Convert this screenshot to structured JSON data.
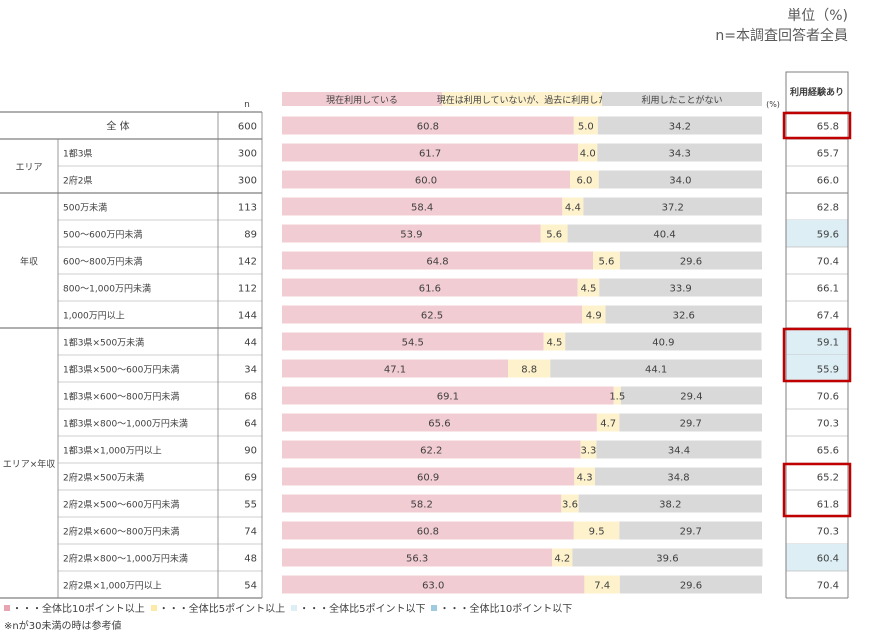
{
  "unit": {
    "line1": "単位（%)",
    "line2": "n=本調査回答者全員"
  },
  "chart_data": {
    "type": "bar",
    "stacked": true,
    "orientation": "horizontal",
    "n_header": "n",
    "pct_label": "(%)",
    "extra_column_header": "利用経験あり",
    "series": [
      {
        "name": "現在利用している",
        "color": "#f2ccd3"
      },
      {
        "name": "現在は利用していないが、過去に利用した",
        "color": "#fdf2cc"
      },
      {
        "name": "利用したことがない",
        "color": "#d9d9d9"
      }
    ],
    "total": {
      "label": "全 体",
      "n": "600",
      "values": [
        60.8,
        5.0,
        34.2
      ],
      "labels": [
        "60.8",
        "5.0",
        "34.2"
      ],
      "experience": "65.8",
      "highlight": "",
      "boxed": true
    },
    "groups": [
      {
        "label": "エリア",
        "rows": [
          {
            "label": "1都3県",
            "n": "300",
            "values": [
              61.7,
              4.0,
              34.3
            ],
            "labels": [
              "61.7",
              "4.0",
              "34.3"
            ],
            "experience": "65.7",
            "highlight": "",
            "boxed": false
          },
          {
            "label": "2府2県",
            "n": "300",
            "values": [
              60.0,
              6.0,
              34.0
            ],
            "labels": [
              "60.0",
              "6.0",
              "34.0"
            ],
            "experience": "66.0",
            "highlight": "",
            "boxed": false
          }
        ]
      },
      {
        "label": "年収",
        "rows": [
          {
            "label": "500万未満",
            "n": "113",
            "values": [
              58.4,
              4.4,
              37.2
            ],
            "labels": [
              "58.4",
              "4.4",
              "37.2"
            ],
            "experience": "62.8",
            "highlight": "",
            "boxed": false
          },
          {
            "label": "500～600万円未満",
            "n": "89",
            "values": [
              53.9,
              5.6,
              40.4
            ],
            "labels": [
              "53.9",
              "5.6",
              "40.4"
            ],
            "experience": "59.6",
            "highlight": "blue",
            "boxed": false
          },
          {
            "label": "600～800万円未満",
            "n": "142",
            "values": [
              64.8,
              5.6,
              29.6
            ],
            "labels": [
              "64.8",
              "5.6",
              "29.6"
            ],
            "experience": "70.4",
            "highlight": "",
            "boxed": false
          },
          {
            "label": "800～1,000万円未満",
            "n": "112",
            "values": [
              61.6,
              4.5,
              33.9
            ],
            "labels": [
              "61.6",
              "4.5",
              "33.9"
            ],
            "experience": "66.1",
            "highlight": "",
            "boxed": false
          },
          {
            "label": "1,000万円以上",
            "n": "144",
            "values": [
              62.5,
              4.9,
              32.6
            ],
            "labels": [
              "62.5",
              "4.9",
              "32.6"
            ],
            "experience": "67.4",
            "highlight": "",
            "boxed": false
          }
        ]
      },
      {
        "label": "エリア×年収",
        "rows": [
          {
            "label": "1都3県×500万未満",
            "n": "44",
            "values": [
              54.5,
              4.5,
              40.9
            ],
            "labels": [
              "54.5",
              "4.5",
              "40.9"
            ],
            "experience": "59.1",
            "highlight": "blue",
            "boxed": true,
            "box_group": "A"
          },
          {
            "label": "1都3県×500～600万円未満",
            "n": "34",
            "values": [
              47.1,
              8.8,
              44.1
            ],
            "labels": [
              "47.1",
              "8.8",
              "44.1"
            ],
            "experience": "55.9",
            "highlight": "blue",
            "boxed": true,
            "box_group": "A"
          },
          {
            "label": "1都3県×600～800万円未満",
            "n": "68",
            "values": [
              69.1,
              1.5,
              29.4
            ],
            "labels": [
              "69.1",
              "1.5",
              "29.4"
            ],
            "experience": "70.6",
            "highlight": "",
            "boxed": false
          },
          {
            "label": "1都3県×800～1,000万円未満",
            "n": "64",
            "values": [
              65.6,
              4.7,
              29.7
            ],
            "labels": [
              "65.6",
              "4.7",
              "29.7"
            ],
            "experience": "70.3",
            "highlight": "",
            "boxed": false
          },
          {
            "label": "1都3県×1,000万円以上",
            "n": "90",
            "values": [
              62.2,
              3.3,
              34.4
            ],
            "labels": [
              "62.2",
              "3.3",
              "34.4"
            ],
            "experience": "65.6",
            "highlight": "",
            "boxed": false
          },
          {
            "label": "2府2県×500万未満",
            "n": "69",
            "values": [
              60.9,
              4.3,
              34.8
            ],
            "labels": [
              "60.9",
              "4.3",
              "34.8"
            ],
            "experience": "65.2",
            "highlight": "",
            "boxed": true,
            "box_group": "B"
          },
          {
            "label": "2府2県×500～600万円未満",
            "n": "55",
            "values": [
              58.2,
              3.6,
              38.2
            ],
            "labels": [
              "58.2",
              "3.6",
              "38.2"
            ],
            "experience": "61.8",
            "highlight": "",
            "boxed": true,
            "box_group": "B"
          },
          {
            "label": "2府2県×600～800万円未満",
            "n": "74",
            "values": [
              60.8,
              9.5,
              29.7
            ],
            "labels": [
              "60.8",
              "9.5",
              "29.7"
            ],
            "experience": "70.3",
            "highlight": "",
            "boxed": false
          },
          {
            "label": "2府2県×800～1,000万円未満",
            "n": "48",
            "values": [
              56.3,
              4.2,
              39.6
            ],
            "labels": [
              "56.3",
              "4.2",
              "39.6"
            ],
            "experience": "60.4",
            "highlight": "blue",
            "boxed": false
          },
          {
            "label": "2府2県×1,000万円以上",
            "n": "54",
            "values": [
              63.0,
              7.4,
              29.6
            ],
            "labels": [
              "63.0",
              "7.4",
              "29.6"
            ],
            "experience": "70.4",
            "highlight": "",
            "boxed": false
          }
        ]
      }
    ],
    "xlim": [
      0,
      100
    ]
  },
  "legend": [
    {
      "text": "・・・全体比10ポイント以上",
      "color": "#e6a5b0"
    },
    {
      "text": "・・・全体比5ポイント以上",
      "color": "#fde9a8"
    },
    {
      "text": "・・・全体比5ポイント以下",
      "color": "#ddeef4"
    },
    {
      "text": "・・・全体比10ポイント以下",
      "color": "#9fcbe0"
    }
  ],
  "note": "※nが30未満の時は参考値",
  "colors": {
    "pink": "#f2ccd3",
    "yellow": "#fdf2cc",
    "gray": "#d9d9d9",
    "blue_highlight": "#ddeef4",
    "box": "#c00000",
    "line": "#7f7f7f"
  }
}
